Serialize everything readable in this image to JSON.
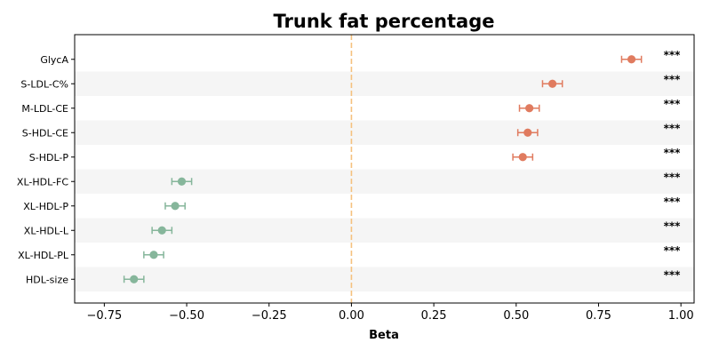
{
  "chart_data": {
    "type": "forest",
    "title": "Trunk fat percentage",
    "xlabel": "Beta",
    "ylabel": "",
    "xlim": [
      -0.84,
      1.04
    ],
    "xticks": [
      -0.75,
      -0.5,
      -0.25,
      0.0,
      0.25,
      0.5,
      0.75,
      1.0
    ],
    "xtick_labels": [
      "−0.75",
      "−0.50",
      "−0.25",
      "0.00",
      "0.25",
      "0.50",
      "0.75",
      "1.00"
    ],
    "reference_line": 0.0,
    "grid": false,
    "row_shading": "alternating",
    "colors": {
      "positive": "#E07B5F",
      "negative": "#86B69B",
      "reference_line": "#F5C17E",
      "row_band": "#F5F5F5"
    },
    "rows": [
      {
        "label": "GlycA",
        "beta": 0.85,
        "ci_low": 0.82,
        "ci_high": 0.88,
        "sig": "***"
      },
      {
        "label": "S-LDL-C%",
        "beta": 0.61,
        "ci_low": 0.58,
        "ci_high": 0.64,
        "sig": "***"
      },
      {
        "label": "M-LDL-CE",
        "beta": 0.54,
        "ci_low": 0.51,
        "ci_high": 0.57,
        "sig": "***"
      },
      {
        "label": "S-HDL-CE",
        "beta": 0.535,
        "ci_low": 0.505,
        "ci_high": 0.565,
        "sig": "***"
      },
      {
        "label": "S-HDL-P",
        "beta": 0.52,
        "ci_low": 0.49,
        "ci_high": 0.55,
        "sig": "***"
      },
      {
        "label": "XL-HDL-FC",
        "beta": -0.515,
        "ci_low": -0.545,
        "ci_high": -0.485,
        "sig": "***"
      },
      {
        "label": "XL-HDL-P",
        "beta": -0.535,
        "ci_low": -0.565,
        "ci_high": -0.505,
        "sig": "***"
      },
      {
        "label": "XL-HDL-L",
        "beta": -0.575,
        "ci_low": -0.605,
        "ci_high": -0.545,
        "sig": "***"
      },
      {
        "label": "XL-HDL-PL",
        "beta": -0.6,
        "ci_low": -0.63,
        "ci_high": -0.57,
        "sig": "***"
      },
      {
        "label": "HDL-size",
        "beta": -0.66,
        "ci_low": -0.69,
        "ci_high": -0.63,
        "sig": "***"
      }
    ]
  }
}
